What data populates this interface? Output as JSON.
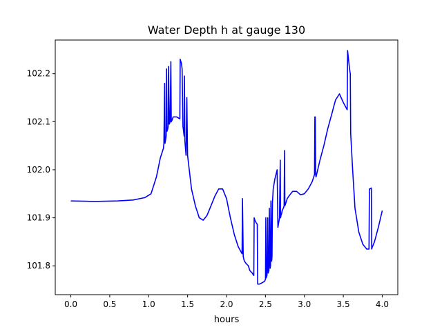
{
  "chart_data": {
    "type": "line",
    "title": "Water Depth h at gauge 130",
    "xlabel": "hours",
    "ylabel": "",
    "xlim": [
      -0.2,
      4.2
    ],
    "ylim": [
      101.74,
      102.27
    ],
    "xticks": [
      0.0,
      0.5,
      1.0,
      1.5,
      2.0,
      2.5,
      3.0,
      3.5,
      4.0
    ],
    "xtick_labels": [
      "0.0",
      "0.5",
      "1.0",
      "1.5",
      "2.0",
      "2.5",
      "3.0",
      "3.5",
      "4.0"
    ],
    "yticks": [
      101.8,
      101.9,
      102.0,
      102.1,
      102.2
    ],
    "ytick_labels": [
      "101.8",
      "101.9",
      "102.0",
      "102.1",
      "102.2"
    ],
    "grid": false,
    "legend": "none",
    "series": [
      {
        "color": "#0000ff",
        "x": [
          0.0,
          0.3,
          0.6,
          0.8,
          0.95,
          1.03,
          1.1,
          1.15,
          1.19,
          1.195,
          1.205,
          1.21,
          1.215,
          1.225,
          1.23,
          1.235,
          1.245,
          1.25,
          1.255,
          1.265,
          1.27,
          1.275,
          1.285,
          1.29,
          1.3,
          1.305,
          1.31,
          1.315,
          1.33,
          1.36,
          1.38,
          1.4,
          1.405,
          1.42,
          1.43,
          1.44,
          1.445,
          1.455,
          1.46,
          1.465,
          1.48,
          1.49,
          1.5,
          1.55,
          1.6,
          1.65,
          1.7,
          1.75,
          1.8,
          1.85,
          1.9,
          1.95,
          2.0,
          2.05,
          2.1,
          2.15,
          2.2,
          2.205,
          2.215,
          2.22,
          2.23,
          2.25,
          2.28,
          2.3,
          2.33,
          2.35,
          2.355,
          2.365,
          2.38,
          2.39,
          2.395,
          2.4,
          2.42,
          2.45,
          2.49,
          2.5,
          2.505,
          2.51,
          2.52,
          2.53,
          2.535,
          2.545,
          2.55,
          2.56,
          2.565,
          2.57,
          2.58,
          2.585,
          2.59,
          2.6,
          2.62,
          2.65,
          2.66,
          2.665,
          2.68,
          2.69,
          2.695,
          2.7,
          2.71,
          2.715,
          2.73,
          2.74,
          2.745,
          2.75,
          2.76,
          2.78,
          2.8,
          2.85,
          2.9,
          2.95,
          3.0,
          3.05,
          3.1,
          3.13,
          3.135,
          3.14,
          3.145,
          3.15,
          3.2,
          3.25,
          3.3,
          3.35,
          3.4,
          3.45,
          3.5,
          3.55,
          3.555,
          3.58,
          3.59,
          3.595,
          3.62,
          3.65,
          3.7,
          3.75,
          3.8,
          3.83,
          3.835,
          3.84,
          3.86,
          3.865,
          3.87,
          3.9,
          3.95,
          4.0
        ],
        "y": [
          101.935,
          101.934,
          101.935,
          101.937,
          101.942,
          101.95,
          101.985,
          102.025,
          102.045,
          102.055,
          102.18,
          102.055,
          102.06,
          102.07,
          102.21,
          102.08,
          102.085,
          102.09,
          102.215,
          102.095,
          102.097,
          102.1,
          102.225,
          102.1,
          102.103,
          102.106,
          102.108,
          102.11,
          102.11,
          102.11,
          102.108,
          102.106,
          102.23,
          102.222,
          102.21,
          102.09,
          102.085,
          102.07,
          102.195,
          102.06,
          102.03,
          102.15,
          102.03,
          101.96,
          101.925,
          101.9,
          101.895,
          101.905,
          101.925,
          101.945,
          101.96,
          101.96,
          101.94,
          101.9,
          101.865,
          101.84,
          101.825,
          101.94,
          101.82,
          101.815,
          101.81,
          101.805,
          101.8,
          101.79,
          101.785,
          101.78,
          101.9,
          101.895,
          101.89,
          101.888,
          101.886,
          101.762,
          101.762,
          101.764,
          101.768,
          101.772,
          101.9,
          101.775,
          101.78,
          101.9,
          101.785,
          101.79,
          101.92,
          101.795,
          101.8,
          101.935,
          101.81,
          101.82,
          101.93,
          101.96,
          101.98,
          102.0,
          101.88,
          101.885,
          101.9,
          102.02,
          101.9,
          101.905,
          101.91,
          101.915,
          101.92,
          101.925,
          102.04,
          101.925,
          101.93,
          101.94,
          101.945,
          101.955,
          101.955,
          101.948,
          101.95,
          101.96,
          101.975,
          101.99,
          102.11,
          102.11,
          101.99,
          101.985,
          102.02,
          102.05,
          102.085,
          102.115,
          102.145,
          102.158,
          102.14,
          102.125,
          102.248,
          102.21,
          102.2,
          102.075,
          102.0,
          101.92,
          101.87,
          101.845,
          101.835,
          101.835,
          101.96,
          101.96,
          101.962,
          101.835,
          101.838,
          101.85,
          101.88,
          101.915
        ]
      }
    ]
  }
}
